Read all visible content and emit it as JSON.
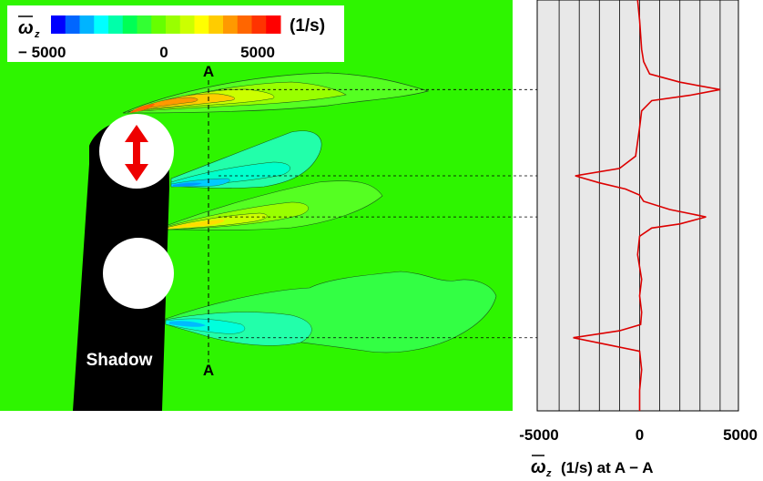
{
  "colorbar": {
    "symbol": "ω",
    "subscript": "z",
    "unit": "(1/s)",
    "tick_labels": [
      "− 5000",
      "0",
      "5000"
    ],
    "colors": [
      "#0000ff",
      "#0066ff",
      "#00b4ff",
      "#00ffff",
      "#00ffaa",
      "#00ff55",
      "#33ff33",
      "#66ff00",
      "#99ff00",
      "#ccff00",
      "#ffff00",
      "#ffcc00",
      "#ff9900",
      "#ff6600",
      "#ff3300",
      "#ff0000"
    ]
  },
  "labels": {
    "section_top": "A",
    "section_bottom": "A",
    "shadow": "Shadow"
  },
  "colors": {
    "field": "#2ef500",
    "panel": "#e8e8e8",
    "profile": "#dd0000",
    "arrow": "#ee0000",
    "cylinder_shadow": "#000000"
  },
  "chart_data": {
    "type": "line",
    "xlabel": "ω_z (1/s) at A − A",
    "xlabel_parts": {
      "symbol": "ω",
      "subscript": "z",
      "rest": "(1/s)  at A − A"
    },
    "x_tick_labels": [
      "-5000",
      "0",
      "5000"
    ],
    "xlim": [
      -5000,
      5000
    ],
    "grid": true,
    "series": [
      {
        "values_note": "",
        "points": [
          {
            "v": -100,
            "p": 0.0
          },
          {
            "v": 0,
            "p": 0.05
          },
          {
            "v": 100,
            "p": 0.12
          },
          {
            "v": 200,
            "p": 0.15
          },
          {
            "v": 500,
            "p": 0.18
          },
          {
            "v": 2000,
            "p": 0.2
          },
          {
            "v": 4000,
            "p": 0.218
          },
          {
            "v": 2500,
            "p": 0.232
          },
          {
            "v": 600,
            "p": 0.245
          },
          {
            "v": 100,
            "p": 0.27
          },
          {
            "v": 0,
            "p": 0.31
          },
          {
            "v": -200,
            "p": 0.38
          },
          {
            "v": -1000,
            "p": 0.41
          },
          {
            "v": -3200,
            "p": 0.428
          },
          {
            "v": -2000,
            "p": 0.445
          },
          {
            "v": -700,
            "p": 0.46
          },
          {
            "v": 0,
            "p": 0.475
          },
          {
            "v": 200,
            "p": 0.49
          },
          {
            "v": 1500,
            "p": 0.51
          },
          {
            "v": 3300,
            "p": 0.528
          },
          {
            "v": 2000,
            "p": 0.545
          },
          {
            "v": 600,
            "p": 0.555
          },
          {
            "v": 0,
            "p": 0.575
          },
          {
            "v": -100,
            "p": 0.62
          },
          {
            "v": 100,
            "p": 0.68
          },
          {
            "v": 0,
            "p": 0.72
          },
          {
            "v": 100,
            "p": 0.76
          },
          {
            "v": 50,
            "p": 0.79
          },
          {
            "v": -1000,
            "p": 0.805
          },
          {
            "v": -3300,
            "p": 0.822
          },
          {
            "v": -1500,
            "p": 0.84
          },
          {
            "v": 0,
            "p": 0.855
          },
          {
            "v": 100,
            "p": 0.9
          },
          {
            "v": 0,
            "p": 0.95
          },
          {
            "v": 0,
            "p": 1.0
          }
        ]
      }
    ]
  }
}
